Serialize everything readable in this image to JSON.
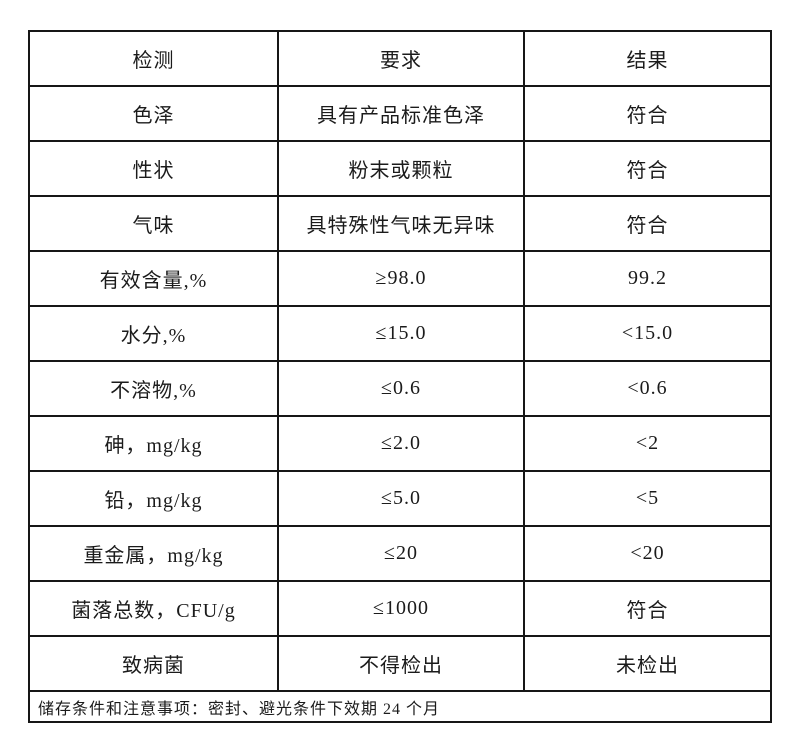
{
  "table": {
    "headers": [
      "检测",
      "要求",
      "结果"
    ],
    "rows": [
      [
        "色泽",
        "具有产品标准色泽",
        "符合"
      ],
      [
        "性状",
        "粉末或颗粒",
        "符合"
      ],
      [
        "气味",
        "具特殊性气味无异味",
        "符合"
      ],
      [
        "有效含量,%",
        "≥98.0",
        "99.2"
      ],
      [
        "水分,%",
        "≤15.0",
        "<15.0"
      ],
      [
        "不溶物,%",
        "≤0.6",
        "<0.6"
      ],
      [
        "砷，mg/kg",
        "≤2.0",
        "<2"
      ],
      [
        "铅，mg/kg",
        "≤5.0",
        "<5"
      ],
      [
        "重金属，mg/kg",
        "≤20",
        "<20"
      ],
      [
        "菌落总数，CFU/g",
        "≤1000",
        "符合"
      ],
      [
        "致病菌",
        "不得检出",
        "未检出"
      ]
    ],
    "footer": "储存条件和注意事项：密封、避光条件下效期 24 个月"
  }
}
